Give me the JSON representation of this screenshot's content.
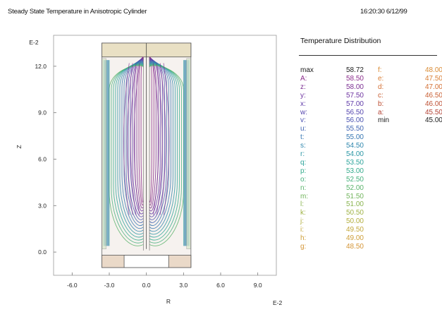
{
  "header": {
    "title": "Steady State Temperature in Anisotropic Cylinder",
    "timestamp": "16:20:30 6/12/99"
  },
  "chart_data": {
    "type": "contour",
    "xlabel": "R",
    "ylabel": "Z",
    "x_exponent_label": "E-2",
    "y_exponent_label": "E-2",
    "xlim": [
      -7.5,
      10.5
    ],
    "ylim": [
      -1.5,
      14.0
    ],
    "x_ticks": [
      -6.0,
      -3.0,
      0.0,
      3.0,
      6.0,
      9.0
    ],
    "x_tick_labels": [
      "-6.0",
      "-3.0",
      "0.0",
      "3.0",
      "6.0",
      "9.0"
    ],
    "y_ticks": [
      0.0,
      3.0,
      6.0,
      9.0,
      12.0
    ],
    "y_tick_labels": [
      "0.0",
      "3.0",
      "6.0",
      "9.0",
      "12.0"
    ],
    "legend": {
      "title": "Temperature Distribution",
      "col1": [
        {
          "label": "max",
          "value": "58.72",
          "color": "#1b1b1b"
        },
        {
          "label": "A:",
          "value": "58.50",
          "color": "#8a2a8a"
        },
        {
          "label": "z:",
          "value": "58.00",
          "color": "#7b2e92"
        },
        {
          "label": "y:",
          "value": "57.50",
          "color": "#6d33a0"
        },
        {
          "label": "x:",
          "value": "57.00",
          "color": "#5f3aa8"
        },
        {
          "label": "w:",
          "value": "56.50",
          "color": "#5444ae"
        },
        {
          "label": "v:",
          "value": "56.00",
          "color": "#4a51b1"
        },
        {
          "label": "u:",
          "value": "55.50",
          "color": "#3f63b2"
        },
        {
          "label": "t:",
          "value": "55.00",
          "color": "#3575b1"
        },
        {
          "label": "s:",
          "value": "54.50",
          "color": "#2e86ad"
        },
        {
          "label": "r:",
          "value": "54.00",
          "color": "#2a96a4"
        },
        {
          "label": "q:",
          "value": "53.50",
          "color": "#2aa39a"
        },
        {
          "label": "p:",
          "value": "53.00",
          "color": "#34ab8c"
        },
        {
          "label": "o:",
          "value": "52.50",
          "color": "#45b07c"
        },
        {
          "label": "n:",
          "value": "52.00",
          "color": "#5ab36b"
        },
        {
          "label": "m:",
          "value": "51.50",
          "color": "#71b45c"
        },
        {
          "label": "l:",
          "value": "51.00",
          "color": "#89b44f"
        },
        {
          "label": "k:",
          "value": "50.50",
          "color": "#9fb245"
        },
        {
          "label": "j:",
          "value": "50.00",
          "color": "#b2ae3e"
        },
        {
          "label": "i:",
          "value": "49.50",
          "color": "#c2a73a"
        },
        {
          "label": "h:",
          "value": "49.00",
          "color": "#cd9e38"
        },
        {
          "label": "g:",
          "value": "48.50",
          "color": "#d49536"
        }
      ],
      "col2": [
        {
          "label": "f:",
          "value": "48.00",
          "color": "#d98b35"
        },
        {
          "label": "e:",
          "value": "47.50",
          "color": "#d97e34"
        },
        {
          "label": "d:",
          "value": "47.00",
          "color": "#d36f33"
        },
        {
          "label": "c:",
          "value": "46.50",
          "color": "#c95f33"
        },
        {
          "label": "b:",
          "value": "46.00",
          "color": "#bd4f33"
        },
        {
          "label": "a:",
          "value": "45.50",
          "color": "#b24033"
        },
        {
          "label": "min",
          "value": "45.00",
          "color": "#1b1b1b"
        }
      ]
    }
  }
}
